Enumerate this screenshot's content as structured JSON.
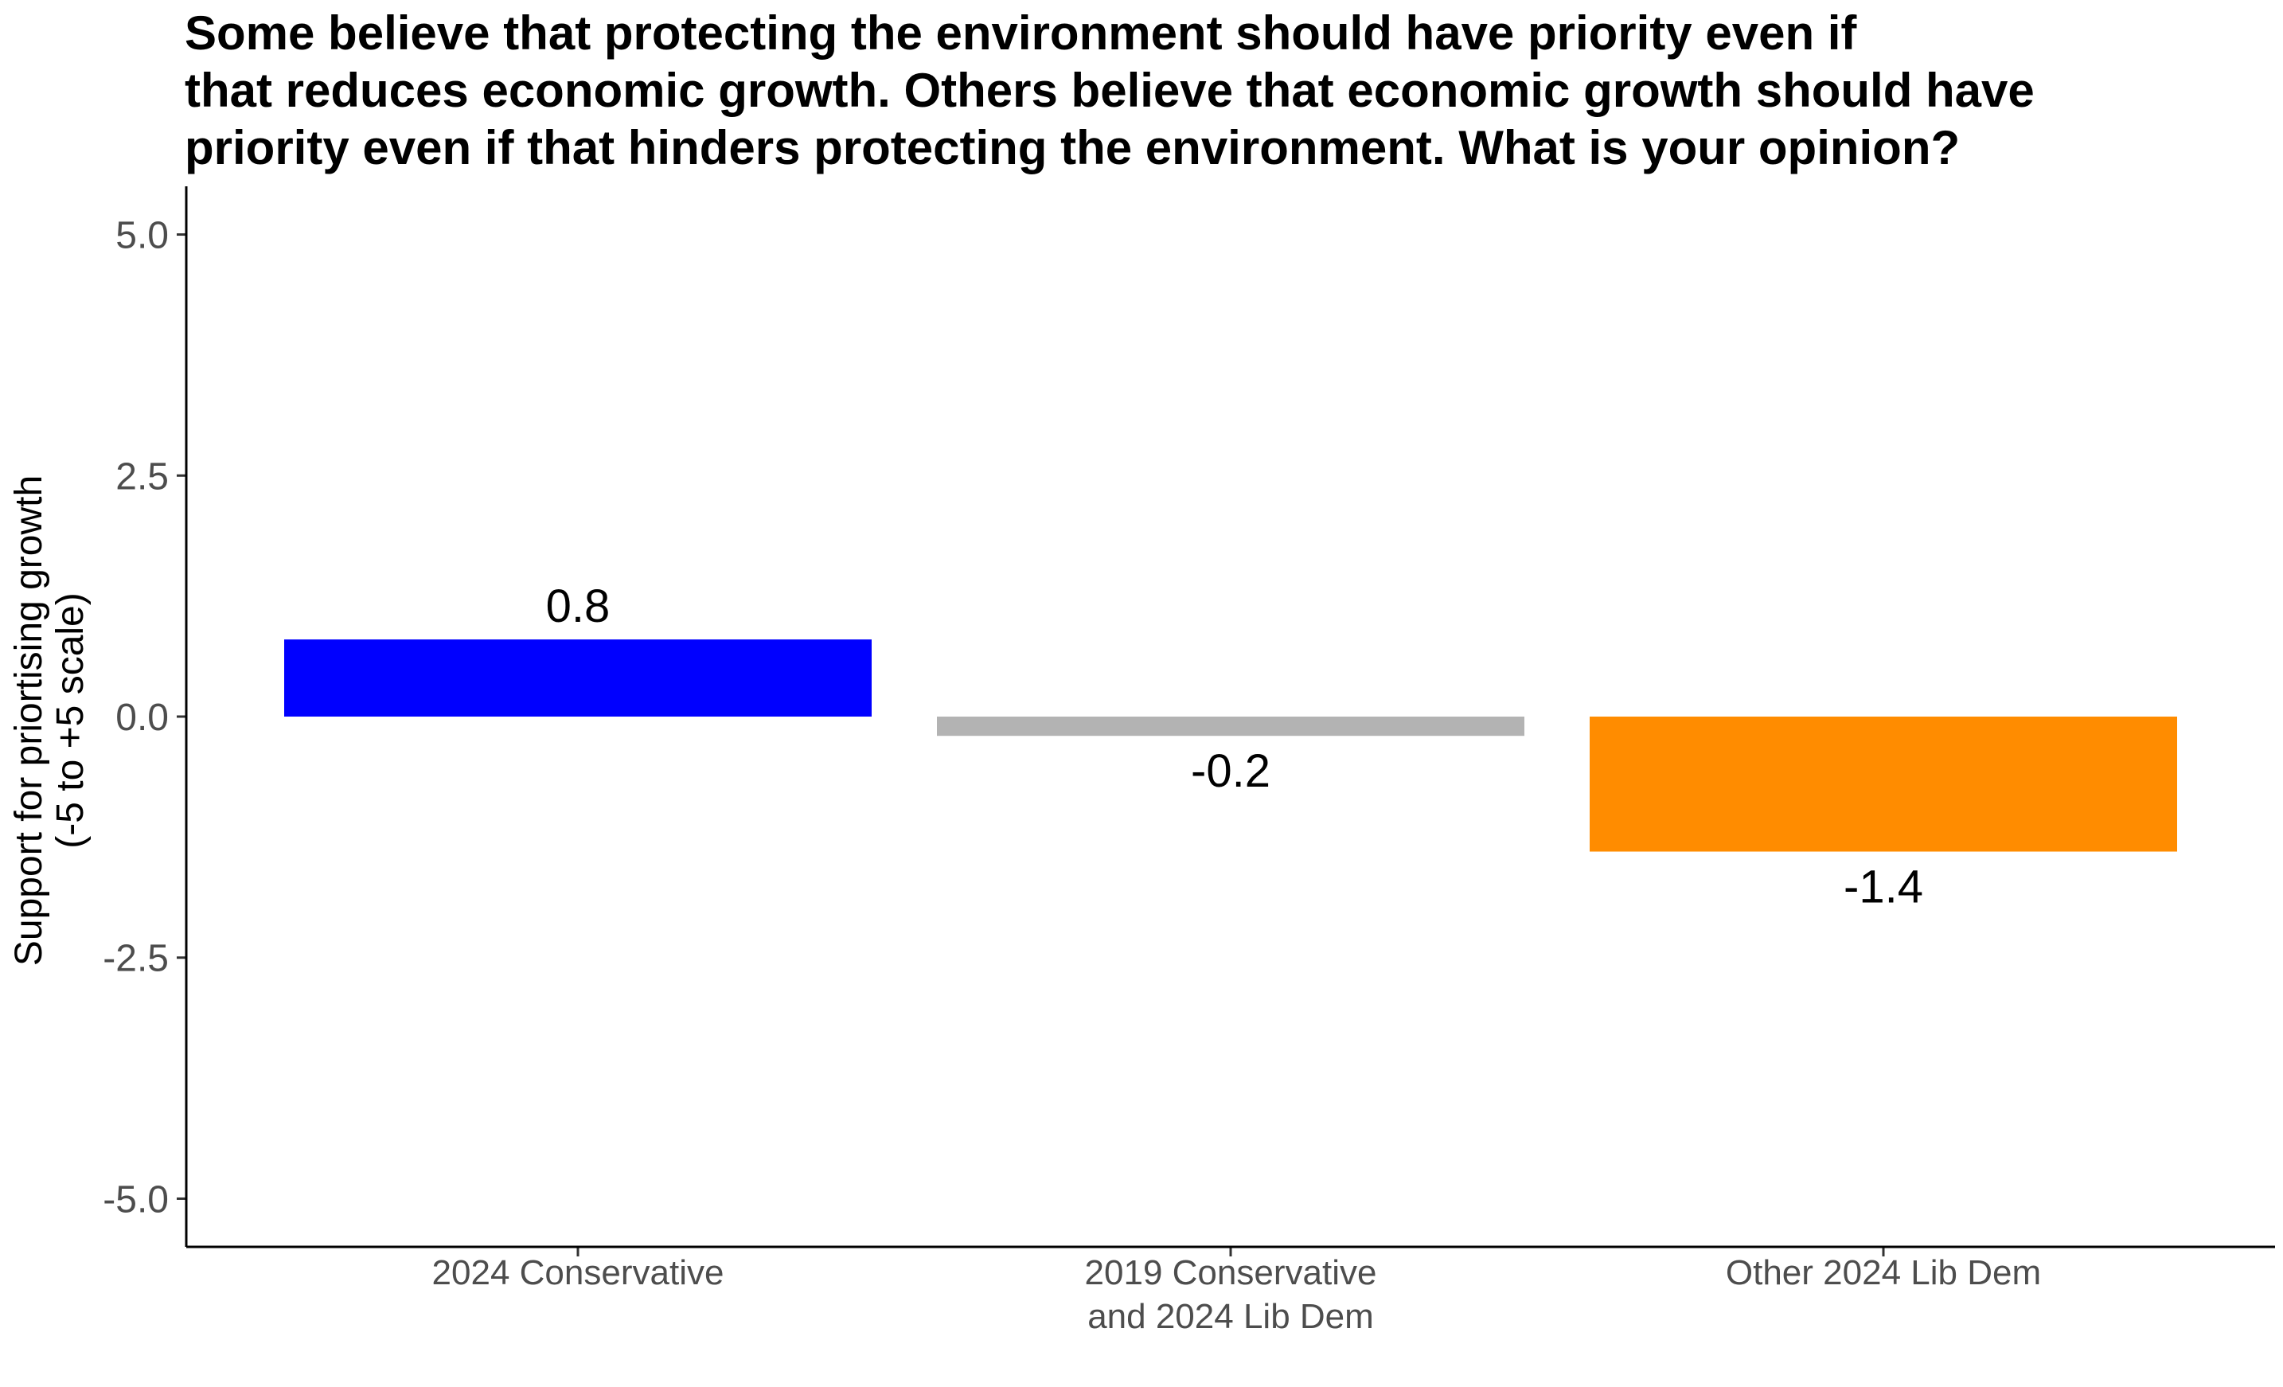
{
  "chart_data": {
    "type": "bar",
    "title_lines": [
      "Some believe that protecting the environment should have priority even if",
      "that reduces economic growth. Others believe that economic growth should have",
      "priority even if that hinders protecting the environment. What is your opinion?"
    ],
    "ylabel_lines": [
      "Support for priortising growth",
      "(-5 to +5 scale)"
    ],
    "xlabel": "",
    "ylim": [
      -5.5,
      5.5
    ],
    "yticks": [
      -5.0,
      -2.5,
      0.0,
      2.5,
      5.0
    ],
    "ytick_labels": [
      "-5.0",
      "-2.5",
      "0.0",
      "2.5",
      "5.0"
    ],
    "categories": [
      {
        "lines": [
          "2024 Conservative"
        ]
      },
      {
        "lines": [
          "2019 Conservative",
          "and 2024 Lib Dem"
        ]
      },
      {
        "lines": [
          "Other 2024 Lib Dem"
        ]
      }
    ],
    "values": [
      0.8,
      -0.2,
      -1.4
    ],
    "data_labels": [
      "0.8",
      "-0.2",
      "-1.4"
    ],
    "colors": [
      "#0000ff",
      "#b3b3b3",
      "#ff8c00"
    ],
    "grid": false,
    "legend": "none"
  }
}
